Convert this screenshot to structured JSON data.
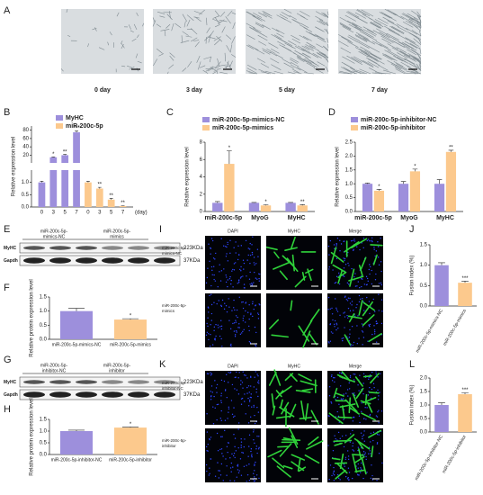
{
  "panels": {
    "letters": [
      "A",
      "B",
      "C",
      "D",
      "E",
      "F",
      "G",
      "H",
      "I",
      "J",
      "K",
      "L"
    ]
  },
  "panel_a": {
    "labels": [
      "0 day",
      "3 day",
      "5 day",
      "7 day"
    ]
  },
  "blots": [
    {
      "groups": [
        [
          "miR-200c-5p-",
          "mimics-NC"
        ],
        [
          "miR-200c-5p-",
          "mimics"
        ]
      ],
      "rows": [
        "MyHC",
        "Gapdh"
      ],
      "sizes": [
        "223KDa",
        "37KDa"
      ]
    },
    {
      "groups": [
        [
          "miR-200c-5p-",
          "inhibitor-NC"
        ],
        [
          "miR-200c-5p-",
          "inhibitor"
        ]
      ],
      "rows": [
        "MyHC",
        "Gapdh"
      ],
      "sizes": [
        "223KDa",
        "37KDa"
      ]
    }
  ],
  "if_panels": [
    {
      "columns": [
        "DAPI",
        "MyHC",
        "Merge"
      ],
      "rows": [
        [
          "miR-200c-5p-",
          "mimics-NC"
        ],
        [
          "miR-200c-5p-",
          "mimics"
        ]
      ]
    },
    {
      "columns": [
        "DAPI",
        "MyHC",
        "Merge"
      ],
      "rows": [
        [
          "miR-200c-5p-",
          "inhibitor-NC"
        ],
        [
          "miR-200c-5p-",
          "inhibitor"
        ]
      ]
    }
  ],
  "chart_data": [
    {
      "type": "bar",
      "layout": "series_blocks",
      "ylabel": "Relative expression level",
      "xlabel": "(day)",
      "categories": [
        "0",
        "3",
        "5",
        "7"
      ],
      "y_segments": [
        [
          0,
          1.5
        ],
        [
          1.5,
          90
        ]
      ],
      "yticks": [
        {
          "value": 0,
          "label": "0.0"
        },
        0.5,
        {
          "value": 1,
          "label": "1.0"
        },
        20,
        40,
        60,
        80
      ],
      "series": [
        {
          "name": "MyHC",
          "color": "#9d8fdc",
          "values": [
            1,
            15,
            20,
            75
          ],
          "errors": [
            0.05,
            1,
            1.5,
            3
          ],
          "significance": [
            null,
            "*",
            "**",
            "***"
          ]
        },
        {
          "name": "miR-200c-5p",
          "color": "#fcc98d",
          "values": [
            1,
            0.75,
            0.3,
            0.04
          ],
          "errors": [
            0.05,
            0.05,
            0.05,
            0.01
          ],
          "significance": [
            null,
            "**",
            "**",
            "**"
          ]
        }
      ]
    },
    {
      "type": "bar",
      "ylabel": "Relative expression level",
      "categories": [
        "miR-200c-5p",
        "MyoG",
        "MyHC"
      ],
      "ylim": [
        0,
        8
      ],
      "yticks": [
        0,
        2,
        4,
        6,
        8
      ],
      "series": [
        {
          "name": "miR-200c-5p-mimics-NC",
          "color": "#9d8fdc",
          "values": [
            1,
            1,
            1
          ],
          "errors": [
            0.15,
            0.05,
            0.05
          ],
          "significance": [
            null,
            null,
            null
          ]
        },
        {
          "name": "miR-200c-5p-mimics",
          "color": "#fcc98d",
          "values": [
            5.5,
            0.7,
            0.7
          ],
          "errors": [
            1.5,
            0.08,
            0.1
          ],
          "significance": [
            "*",
            "*",
            "**"
          ]
        }
      ]
    },
    {
      "type": "bar",
      "ylabel": "Relative expression level",
      "categories": [
        "miR-200c-5p",
        "MyoG",
        "MyHC"
      ],
      "ylim": [
        0,
        2.5
      ],
      "yticks": [
        {
          "value": 0,
          "label": "0.0"
        },
        0.5,
        {
          "value": 1,
          "label": "1.0"
        },
        1.5,
        {
          "value": 2,
          "label": "2.0"
        },
        2.5
      ],
      "series": [
        {
          "name": "miR-200c-5p-inhibitor-NC",
          "color": "#9d8fdc",
          "values": [
            1,
            1,
            1
          ],
          "errors": [
            0.03,
            0.08,
            0.15
          ],
          "significance": [
            null,
            null,
            null
          ]
        },
        {
          "name": "miR-200c-5p-inhibitor",
          "color": "#fcc98d",
          "values": [
            0.75,
            1.45,
            2.15
          ],
          "errors": [
            0.05,
            0.08,
            0.06
          ],
          "significance": [
            "*",
            "*",
            "**"
          ]
        }
      ]
    },
    {
      "type": "bar",
      "ylabel": "Relative protein expression level",
      "categories": [
        "miR-200c-5p-mimics-NC",
        "miR-200c-5p-mimics"
      ],
      "values": [
        1,
        0.7
      ],
      "errors": [
        0.1,
        0.03
      ],
      "colors": [
        "#9d8fdc",
        "#fcc98d"
      ],
      "significance": [
        null,
        "*"
      ],
      "ylim": [
        0,
        1.5
      ],
      "yticks": [
        {
          "value": 0,
          "label": "0.0"
        },
        0.5,
        {
          "value": 1,
          "label": "1.0"
        },
        1.5
      ]
    },
    {
      "type": "bar",
      "ylabel": "Relative protein expression level",
      "categories": [
        "miR-200c-5p-inhibitor-NC",
        "miR-200c-5p-inhibitor"
      ],
      "values": [
        1,
        1.15
      ],
      "errors": [
        0.04,
        0.03
      ],
      "colors": [
        "#9d8fdc",
        "#fcc98d"
      ],
      "significance": [
        null,
        "*"
      ],
      "ylim": [
        0,
        1.5
      ],
      "yticks": [
        {
          "value": 0,
          "label": "0.0"
        },
        0.5,
        {
          "value": 1,
          "label": "1.0"
        },
        1.5
      ]
    },
    {
      "type": "bar",
      "ylabel": "Fusion index (%)",
      "categories": [
        "miR-200c-5p-mimics-NC",
        "miR-200c-5p-mimics"
      ],
      "values": [
        1,
        0.57
      ],
      "errors": [
        0.06,
        0.04
      ],
      "colors": [
        "#9d8fdc",
        "#fcc98d"
      ],
      "significance": [
        null,
        "***"
      ],
      "ylim": [
        0,
        1.5
      ],
      "yticks": [
        {
          "value": 0,
          "label": "0.0"
        },
        0.5,
        {
          "value": 1,
          "label": "1.0"
        },
        1.5
      ]
    },
    {
      "type": "bar",
      "ylabel": "Fusion index (%)",
      "categories": [
        "miR-200c-5p-inhibitor-NC",
        "miR-200c-5p-inhibitor"
      ],
      "values": [
        1,
        1.4
      ],
      "errors": [
        0.08,
        0.05
      ],
      "colors": [
        "#9d8fdc",
        "#fcc98d"
      ],
      "significance": [
        null,
        "***"
      ],
      "ylim": [
        0,
        2
      ],
      "yticks": [
        {
          "value": 0,
          "label": "0.0"
        },
        0.5,
        {
          "value": 1,
          "label": "1.0"
        },
        1.5,
        {
          "value": 2,
          "label": "2.0"
        }
      ]
    }
  ]
}
